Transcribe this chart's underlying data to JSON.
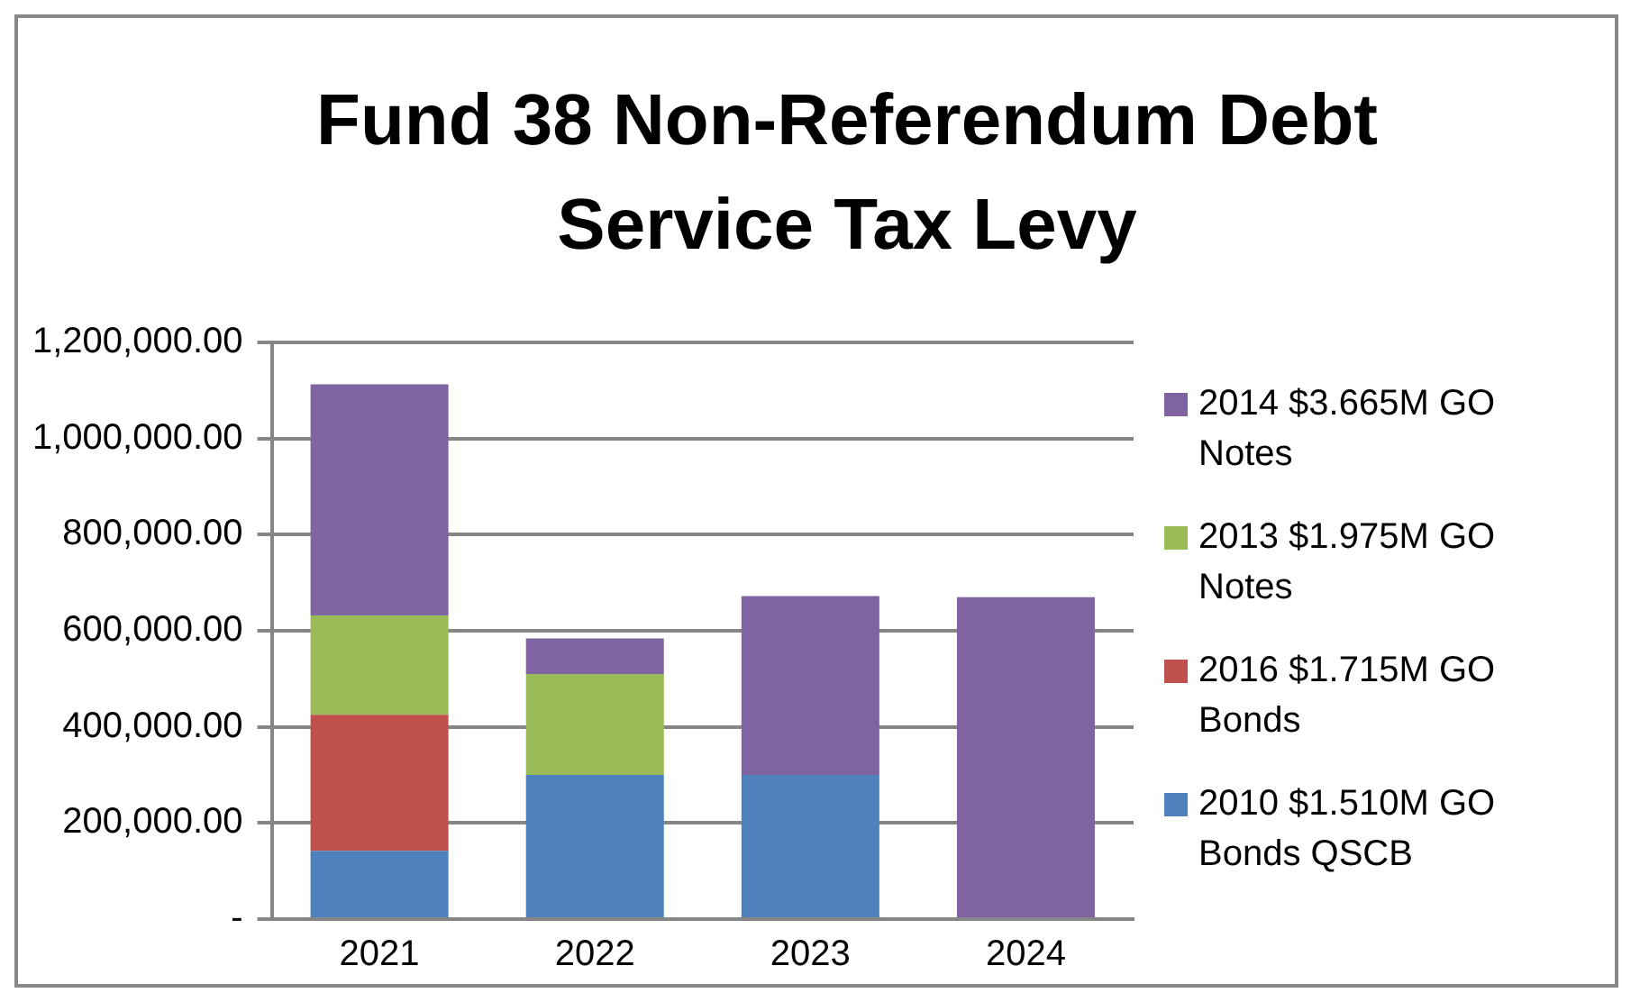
{
  "chart_data": {
    "type": "bar",
    "title": "Fund 38 Non-Referendum Debt Service Tax Levy",
    "categories": [
      "2021",
      "2022",
      "2023",
      "2024"
    ],
    "stacked": true,
    "series": [
      {
        "name": "2010 $1.510M GO Bonds QSCB",
        "color": "#4f81bd",
        "values": [
          142000,
          300000,
          300000,
          null
        ]
      },
      {
        "name": "2016 $1.715M GO Bonds",
        "color": "#c0504d",
        "values": [
          283000,
          null,
          null,
          null
        ]
      },
      {
        "name": "2013 $1.975M GO Notes",
        "color": "#9bbb59",
        "values": [
          207000,
          210000,
          null,
          null
        ]
      },
      {
        "name": "2014 $3.665M GO Notes",
        "color": "#8064a2",
        "values": [
          481000,
          74000,
          372000,
          670000
        ]
      }
    ],
    "ylim": [
      0,
      1200000
    ],
    "yticks": [
      {
        "value": 0,
        "label": "-"
      },
      {
        "value": 200000,
        "label": "200,000.00"
      },
      {
        "value": 400000,
        "label": "400,000.00"
      },
      {
        "value": 600000,
        "label": "600,000.00"
      },
      {
        "value": 800000,
        "label": "800,000.00"
      },
      {
        "value": 1000000,
        "label": "1,000,000.00"
      },
      {
        "value": 1200000,
        "label": "1,200,000.00"
      }
    ],
    "grid": "y",
    "legend": "right"
  }
}
